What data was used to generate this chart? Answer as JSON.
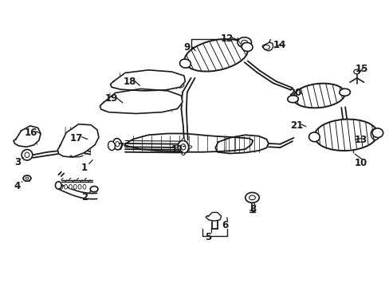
{
  "bg": "#ffffff",
  "fw": 4.89,
  "fh": 3.6,
  "dpi": 100,
  "lc": "#1a1a1a",
  "labels": {
    "1": [
      0.215,
      0.415,
      0.24,
      0.448
    ],
    "2": [
      0.215,
      0.31,
      0.235,
      0.34
    ],
    "3": [
      0.042,
      0.435,
      0.062,
      0.455
    ],
    "4": [
      0.042,
      0.35,
      0.058,
      0.372
    ],
    "5": [
      0.535,
      0.172,
      0.543,
      0.21
    ],
    "6": [
      0.577,
      0.213,
      0.582,
      0.248
    ],
    "7": [
      0.308,
      0.488,
      0.335,
      0.51
    ],
    "8": [
      0.65,
      0.268,
      0.65,
      0.298
    ],
    "9": [
      0.48,
      0.838,
      0.505,
      0.82
    ],
    "10": [
      0.928,
      0.432,
      0.908,
      0.468
    ],
    "11": [
      0.455,
      0.48,
      0.48,
      0.492
    ],
    "12": [
      0.582,
      0.868,
      0.618,
      0.858
    ],
    "13": [
      0.928,
      0.512,
      0.908,
      0.512
    ],
    "14": [
      0.718,
      0.845,
      0.7,
      0.832
    ],
    "15": [
      0.93,
      0.762,
      0.918,
      0.742
    ],
    "16": [
      0.078,
      0.538,
      0.108,
      0.53
    ],
    "17": [
      0.195,
      0.518,
      0.228,
      0.512
    ],
    "18": [
      0.332,
      0.718,
      0.362,
      0.698
    ],
    "19": [
      0.285,
      0.658,
      0.318,
      0.638
    ],
    "20": [
      0.758,
      0.678,
      0.782,
      0.668
    ],
    "21": [
      0.762,
      0.562,
      0.792,
      0.556
    ]
  }
}
